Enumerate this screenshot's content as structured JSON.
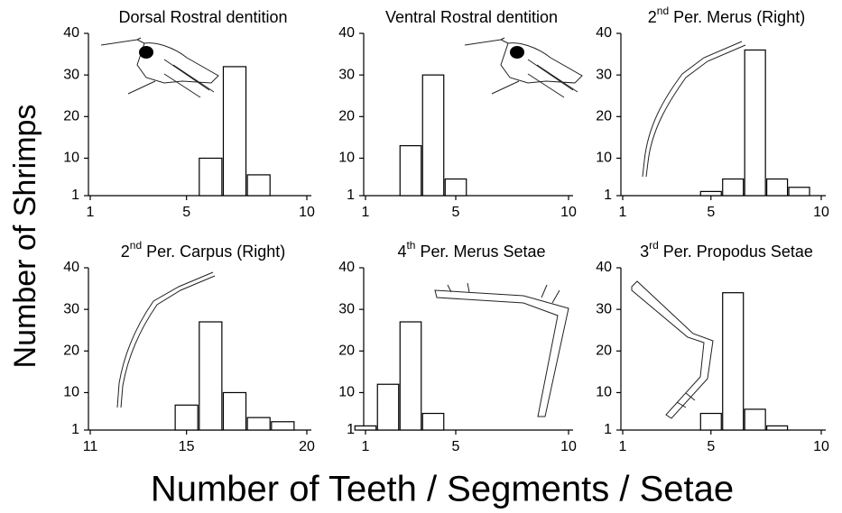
{
  "ylabel": "Number of Shrimps",
  "xlabel": "Number of Teeth / Segments / Setae",
  "chart_data": [
    {
      "type": "bar",
      "title": "Dorsal Rostral dentition",
      "x": [
        6,
        7,
        8
      ],
      "values": [
        10,
        32,
        6
      ],
      "color": "#ffffff",
      "xlim": [
        1,
        10
      ],
      "xticks": [
        1,
        5,
        10
      ],
      "ylim": [
        1,
        40
      ],
      "yticks": [
        1,
        10,
        20,
        30,
        40
      ]
    },
    {
      "type": "bar",
      "title": "Ventral Rostral dentition",
      "x": [
        3,
        4,
        5
      ],
      "values": [
        13,
        30,
        5
      ],
      "color": "#ffffff",
      "xlim": [
        1,
        10
      ],
      "xticks": [
        1,
        5,
        10
      ],
      "ylim": [
        1,
        40
      ],
      "yticks": [
        1,
        10,
        20,
        30,
        40
      ]
    },
    {
      "type": "bar",
      "title": "2nd Per. Merus (Right)",
      "x": [
        5,
        6,
        7,
        8,
        9
      ],
      "values": [
        2,
        5,
        36,
        5,
        3
      ],
      "color": "#ffffff",
      "xlim": [
        1,
        10
      ],
      "xticks": [
        1,
        5,
        10
      ],
      "ylim": [
        1,
        40
      ],
      "yticks": [
        1,
        10,
        20,
        30,
        40
      ]
    },
    {
      "type": "bar",
      "title": "2nd Per. Carpus (Right)",
      "x": [
        15,
        16,
        17,
        18,
        19
      ],
      "values": [
        7,
        27,
        10,
        4,
        3
      ],
      "color": "#ffffff",
      "xlim": [
        11,
        20
      ],
      "xticks": [
        11,
        15,
        20
      ],
      "ylim": [
        1,
        40
      ],
      "yticks": [
        1,
        10,
        20,
        30,
        40
      ]
    },
    {
      "type": "bar",
      "title": "4th Per. Merus Setae",
      "x": [
        1,
        2,
        3,
        4
      ],
      "values": [
        2,
        12,
        27,
        5
      ],
      "color": "#ffffff",
      "xlim": [
        1,
        10
      ],
      "xticks": [
        1,
        5,
        10
      ],
      "ylim": [
        1,
        40
      ],
      "yticks": [
        1,
        10,
        20,
        30,
        40
      ]
    },
    {
      "type": "bar",
      "title": "3rd Per. Propodus Setae",
      "x": [
        5,
        6,
        7,
        8
      ],
      "values": [
        5,
        34,
        6,
        2
      ],
      "color": "#ffffff",
      "xlim": [
        1,
        10
      ],
      "xticks": [
        1,
        5,
        10
      ],
      "ylim": [
        1,
        40
      ],
      "yticks": [
        1,
        10,
        20,
        30,
        40
      ]
    }
  ]
}
